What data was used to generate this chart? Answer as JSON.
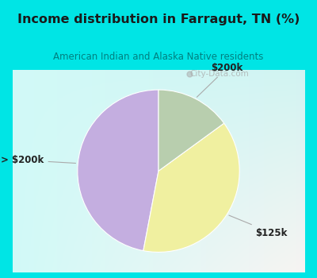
{
  "title": "Income distribution in Farragut, TN (%)",
  "subtitle": "American Indian and Alaska Native residents",
  "title_color": "#1a1a1a",
  "subtitle_color": "#008080",
  "background_cyan": "#00e5e5",
  "background_chart": "#dff0ea",
  "slices": [
    {
      "label": "> $200k",
      "value": 47,
      "color": "#c4aee0"
    },
    {
      "label": "$125k",
      "value": 38,
      "color": "#f0f0a0"
    },
    {
      "label": "$200k",
      "value": 15,
      "color": "#b8ceae"
    }
  ],
  "label_color": "#222222",
  "label_fontsize": 8.5,
  "watermark": "City-Data.com",
  "watermark_color": "#aaaaaa",
  "startangle": 90,
  "figsize": [
    4.0,
    3.5
  ],
  "dpi": 100
}
